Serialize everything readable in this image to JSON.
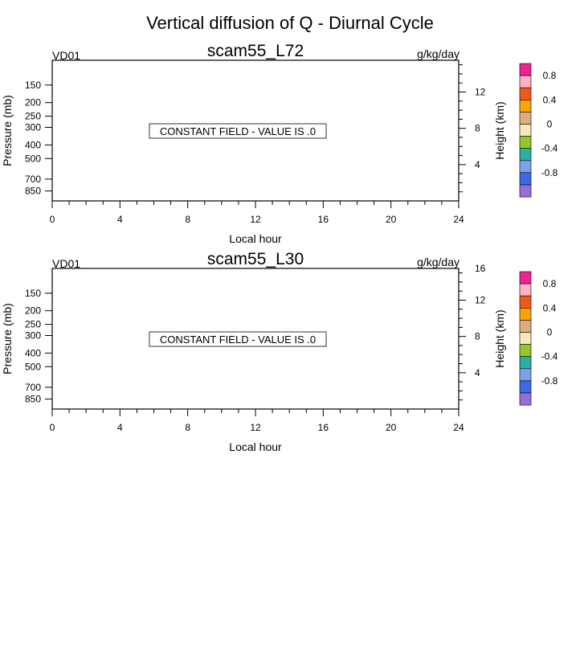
{
  "main_title": "Vertical diffusion of Q - Diurnal Cycle",
  "chart_data": [
    {
      "type": "contour",
      "title": "scam55_L72",
      "left_label": "VD01",
      "right_label": "g/kg/day",
      "message": "CONSTANT FIELD - VALUE IS .0",
      "xlabel": "Local hour",
      "ylabel": "Pressure (mb)",
      "y2label": "Height (km)",
      "x_ticks": [
        "0",
        "4",
        "8",
        "12",
        "16",
        "20",
        "24"
      ],
      "x_range": [
        0,
        24
      ],
      "y_ticks": [
        "150",
        "200",
        "250",
        "300",
        "400",
        "500",
        "700",
        "850"
      ],
      "y2_ticks": [
        "4",
        "8",
        "12"
      ],
      "constant_value": 0.0,
      "colorbar": {
        "labels": [
          "0.8",
          "0.4",
          "0",
          "-0.4",
          "-0.8"
        ],
        "colors": [
          "#ef2290",
          "#fbb4c4",
          "#f2571b",
          "#f6a40a",
          "#dbad7f",
          "#f7e7bd",
          "#95c52f",
          "#2ab0a0",
          "#7fa0f0",
          "#3d6ae0",
          "#9370d8"
        ]
      }
    },
    {
      "type": "contour",
      "title": "scam55_L30",
      "left_label": "VD01",
      "right_label": "g/kg/day",
      "message": "CONSTANT FIELD - VALUE IS .0",
      "xlabel": "Local hour",
      "ylabel": "Pressure (mb)",
      "y2label": "Height (km)",
      "x_ticks": [
        "0",
        "4",
        "8",
        "12",
        "16",
        "20",
        "24"
      ],
      "x_range": [
        0,
        24
      ],
      "y_ticks": [
        "150",
        "200",
        "250",
        "300",
        "400",
        "500",
        "700",
        "850"
      ],
      "y2_ticks": [
        "4",
        "8",
        "12",
        "16"
      ],
      "constant_value": 0.0,
      "colorbar": {
        "labels": [
          "0.8",
          "0.4",
          "0",
          "-0.4",
          "-0.8"
        ],
        "colors": [
          "#ef2290",
          "#fbb4c4",
          "#f2571b",
          "#f6a40a",
          "#dbad7f",
          "#f7e7bd",
          "#95c52f",
          "#2ab0a0",
          "#7fa0f0",
          "#3d6ae0",
          "#9370d8"
        ]
      }
    }
  ]
}
